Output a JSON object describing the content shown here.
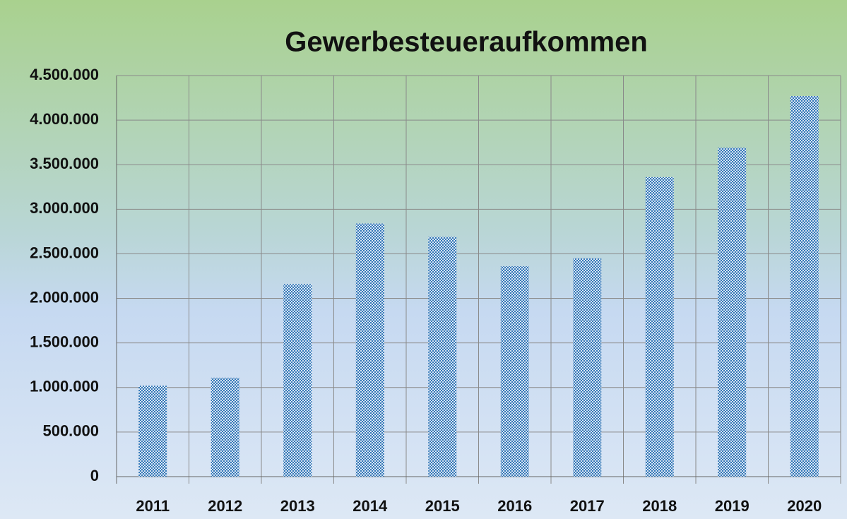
{
  "chart_data": {
    "type": "bar",
    "title": "Gewerbesteueraufkommen",
    "categories": [
      "2011",
      "2012",
      "2013",
      "2014",
      "2015",
      "2016",
      "2017",
      "2018",
      "2019",
      "2020"
    ],
    "values": [
      1020000,
      1110000,
      2160000,
      2840000,
      2690000,
      2360000,
      2450000,
      3360000,
      3690000,
      4270000
    ],
    "color": "#2e75b6",
    "ylim": [
      0,
      4500000
    ],
    "yticks": [
      0,
      {
        "value": 500000,
        "label": "500.000"
      },
      {
        "value": 1000000,
        "label": "1.000.000"
      },
      {
        "value": 1500000,
        "label": "1.500.000"
      },
      {
        "value": 2000000,
        "label": "2.000.000"
      },
      {
        "value": 2500000,
        "label": "2.500.000"
      },
      {
        "value": 3000000,
        "label": "3.000.000"
      },
      {
        "value": 3500000,
        "label": "3.500.000"
      },
      {
        "value": 4000000,
        "label": "4.000.000"
      },
      {
        "value": 4500000,
        "label": "4.500.000"
      }
    ],
    "grid": true
  }
}
